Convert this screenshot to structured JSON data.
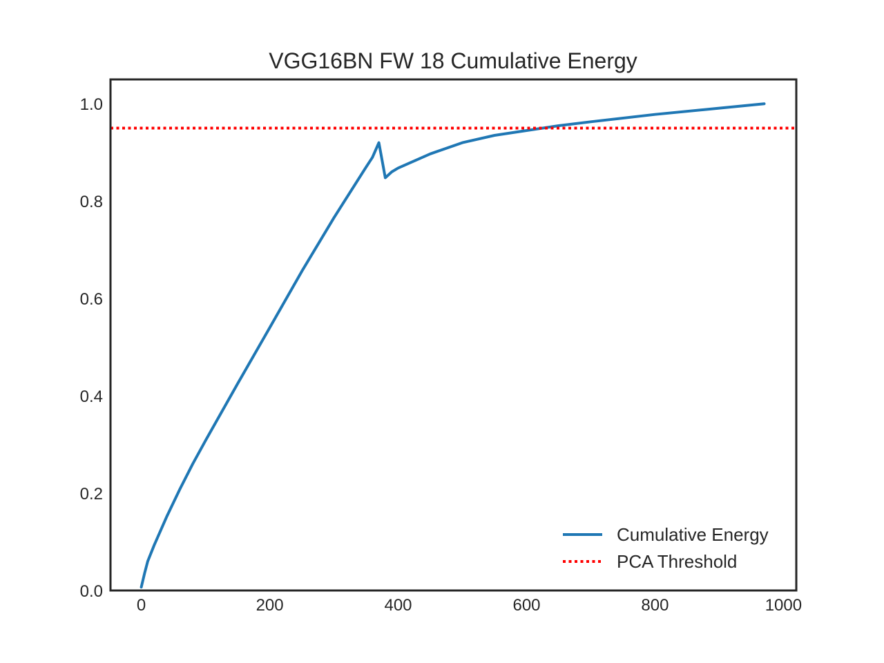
{
  "chart_data": {
    "type": "line",
    "title": "VGG16BN FW 18 Cumulative Energy",
    "xlabel": "",
    "ylabel": "",
    "xlim": [
      -48,
      1020
    ],
    "ylim": [
      0.0,
      1.05
    ],
    "x_ticks": [
      0,
      200,
      400,
      600,
      800,
      1000
    ],
    "x_tick_labels": [
      "0",
      "200",
      "400",
      "600",
      "800",
      "1000"
    ],
    "y_ticks": [
      0.0,
      0.2,
      0.4,
      0.6,
      0.8,
      1.0
    ],
    "y_tick_labels": [
      "0.0",
      "0.2",
      "0.4",
      "0.6",
      "0.8",
      "1.0"
    ],
    "grid": false,
    "legend_position": "lower-right",
    "series": [
      {
        "name": "Cumulative Energy",
        "color": "#1f77b4",
        "style": "solid",
        "x": [
          0,
          5,
          10,
          20,
          40,
          60,
          80,
          100,
          150,
          200,
          250,
          300,
          350,
          360,
          370,
          380,
          390,
          400,
          450,
          500,
          550,
          600,
          650,
          700,
          800,
          900,
          970
        ],
        "y": [
          0.007,
          0.035,
          0.06,
          0.093,
          0.153,
          0.208,
          0.26,
          0.308,
          0.425,
          0.54,
          0.656,
          0.766,
          0.87,
          0.89,
          0.92,
          0.848,
          0.86,
          0.868,
          0.897,
          0.92,
          0.935,
          0.945,
          0.955,
          0.963,
          0.978,
          0.991,
          1.0
        ]
      },
      {
        "name": "PCA Threshold",
        "color": "#ff0000",
        "style": "dotted",
        "x": [
          -48,
          1020
        ],
        "y": [
          0.95,
          0.95
        ]
      }
    ]
  }
}
